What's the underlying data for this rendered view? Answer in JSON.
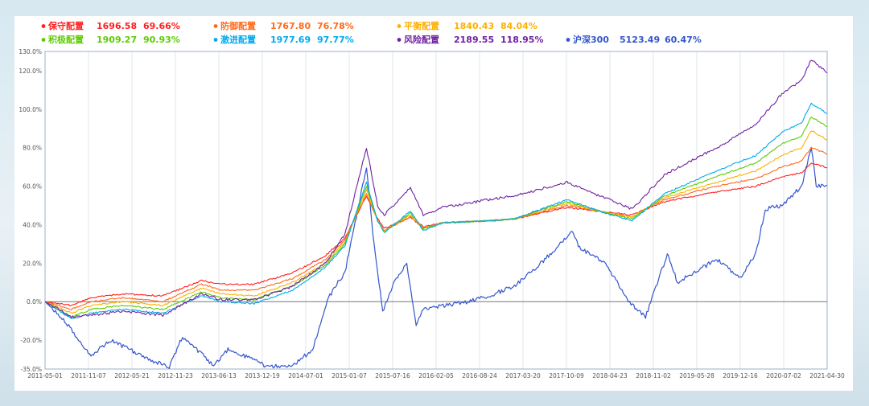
{
  "chart_data": {
    "type": "line",
    "x_start": "2011-05-01",
    "x_end": "2021-04-30",
    "x_tick_labels": [
      "2011-05-01",
      "2011-11-07",
      "2012-05-21",
      "2012-11-23",
      "2013-06-13",
      "2013-12-19",
      "2014-07-01",
      "2015-01-07",
      "2015-07-16",
      "2016-02-05",
      "2016-08-24",
      "2017-03-20",
      "2017-10-09",
      "2018-04-23",
      "2018-11-02",
      "2019-05-28",
      "2019-12-16",
      "2020-07-02",
      "2021-04-30"
    ],
    "y_tick_labels": [
      "130.0%",
      "120.0%",
      "100.0%",
      "80.0%",
      "60.0%",
      "40.0%",
      "20.0%",
      "0.0%",
      "-20.0%",
      "-35.0%"
    ],
    "ylim": [
      -35,
      130
    ],
    "y_ticks": [
      130,
      120,
      100,
      80,
      60,
      40,
      20,
      0,
      -20,
      -35
    ],
    "grid": "vertical",
    "legend_position": "top",
    "series": [
      {
        "name": "保守配置",
        "value": "1696.58",
        "pct": "69.66%",
        "color": "#ff2020",
        "points": [
          [
            "2011-05-01",
            0
          ],
          [
            "2011-09-01",
            -2
          ],
          [
            "2011-12-01",
            2
          ],
          [
            "2012-05-01",
            4
          ],
          [
            "2012-11-01",
            3
          ],
          [
            "2013-05-01",
            11
          ],
          [
            "2013-08-01",
            9
          ],
          [
            "2014-01-01",
            9
          ],
          [
            "2014-07-01",
            15
          ],
          [
            "2014-12-01",
            24
          ],
          [
            "2015-03-01",
            33
          ],
          [
            "2015-06-10",
            55
          ],
          [
            "2015-08-01",
            43
          ],
          [
            "2015-09-01",
            38
          ],
          [
            "2016-01-01",
            44
          ],
          [
            "2016-03-01",
            39
          ],
          [
            "2016-06-01",
            41
          ],
          [
            "2017-01-01",
            42
          ],
          [
            "2017-05-01",
            43
          ],
          [
            "2018-01-01",
            49
          ],
          [
            "2018-06-01",
            47
          ],
          [
            "2018-11-01",
            45
          ],
          [
            "2019-04-01",
            52
          ],
          [
            "2019-12-01",
            57
          ],
          [
            "2020-06-01",
            60
          ],
          [
            "2020-10-01",
            65
          ],
          [
            "2021-01-01",
            67
          ],
          [
            "2021-02-15",
            72
          ],
          [
            "2021-04-30",
            69.66
          ]
        ]
      },
      {
        "name": "防御配置",
        "value": "1767.80",
        "pct": "76.78%",
        "color": "#ff6a1a",
        "points": [
          [
            "2011-05-01",
            0
          ],
          [
            "2011-09-01",
            -4
          ],
          [
            "2011-12-01",
            0
          ],
          [
            "2012-05-01",
            2
          ],
          [
            "2012-11-01",
            0
          ],
          [
            "2013-05-01",
            9
          ],
          [
            "2013-08-01",
            6
          ],
          [
            "2014-01-01",
            6
          ],
          [
            "2014-07-01",
            12
          ],
          [
            "2014-12-01",
            22
          ],
          [
            "2015-03-01",
            32
          ],
          [
            "2015-06-10",
            56
          ],
          [
            "2015-08-01",
            42
          ],
          [
            "2015-09-01",
            37
          ],
          [
            "2016-01-01",
            44
          ],
          [
            "2016-03-01",
            38
          ],
          [
            "2016-06-01",
            41
          ],
          [
            "2017-01-01",
            42
          ],
          [
            "2017-05-01",
            43
          ],
          [
            "2018-01-01",
            50
          ],
          [
            "2018-06-01",
            47
          ],
          [
            "2018-11-01",
            44
          ],
          [
            "2019-04-01",
            53
          ],
          [
            "2019-12-01",
            60
          ],
          [
            "2020-06-01",
            64
          ],
          [
            "2020-10-01",
            70
          ],
          [
            "2021-01-01",
            73
          ],
          [
            "2021-02-15",
            80
          ],
          [
            "2021-04-30",
            76.78
          ]
        ]
      },
      {
        "name": "平衡配置",
        "value": "1840.43",
        "pct": "84.04%",
        "color": "#ffb000",
        "points": [
          [
            "2011-05-01",
            0
          ],
          [
            "2011-09-01",
            -6
          ],
          [
            "2011-12-01",
            -2
          ],
          [
            "2012-05-01",
            0
          ],
          [
            "2012-11-01",
            -2
          ],
          [
            "2013-05-01",
            7
          ],
          [
            "2013-08-01",
            4
          ],
          [
            "2014-01-01",
            3
          ],
          [
            "2014-07-01",
            10
          ],
          [
            "2014-12-01",
            20
          ],
          [
            "2015-03-01",
            31
          ],
          [
            "2015-06-10",
            58
          ],
          [
            "2015-08-01",
            42
          ],
          [
            "2015-09-01",
            37
          ],
          [
            "2016-01-01",
            45
          ],
          [
            "2016-03-01",
            38
          ],
          [
            "2016-06-01",
            41
          ],
          [
            "2017-01-01",
            42
          ],
          [
            "2017-05-01",
            43
          ],
          [
            "2018-01-01",
            51
          ],
          [
            "2018-06-01",
            47
          ],
          [
            "2018-11-01",
            44
          ],
          [
            "2019-04-01",
            54
          ],
          [
            "2019-12-01",
            62
          ],
          [
            "2020-06-01",
            68
          ],
          [
            "2020-10-01",
            76
          ],
          [
            "2021-01-01",
            80
          ],
          [
            "2021-02-15",
            89
          ],
          [
            "2021-04-30",
            84.04
          ]
        ]
      },
      {
        "name": "积极配置",
        "value": "1909.27",
        "pct": "90.93%",
        "color": "#5ccc00",
        "points": [
          [
            "2011-05-01",
            0
          ],
          [
            "2011-09-01",
            -8
          ],
          [
            "2011-12-01",
            -4
          ],
          [
            "2012-05-01",
            -2
          ],
          [
            "2012-11-01",
            -4
          ],
          [
            "2013-05-01",
            5
          ],
          [
            "2013-08-01",
            2
          ],
          [
            "2014-01-01",
            1
          ],
          [
            "2014-07-01",
            8
          ],
          [
            "2014-12-01",
            19
          ],
          [
            "2015-03-01",
            30
          ],
          [
            "2015-06-10",
            60
          ],
          [
            "2015-08-01",
            42
          ],
          [
            "2015-09-01",
            36
          ],
          [
            "2016-01-01",
            46
          ],
          [
            "2016-03-01",
            38
          ],
          [
            "2016-06-01",
            41
          ],
          [
            "2017-01-01",
            42
          ],
          [
            "2017-05-01",
            43
          ],
          [
            "2018-01-01",
            52
          ],
          [
            "2018-06-01",
            47
          ],
          [
            "2018-11-01",
            43
          ],
          [
            "2019-04-01",
            55
          ],
          [
            "2019-12-01",
            65
          ],
          [
            "2020-06-01",
            72
          ],
          [
            "2020-10-01",
            82
          ],
          [
            "2021-01-01",
            86
          ],
          [
            "2021-02-15",
            96
          ],
          [
            "2021-04-30",
            90.93
          ]
        ]
      },
      {
        "name": "激进配置",
        "value": "1977.69",
        "pct": "97.77%",
        "color": "#00aaee",
        "points": [
          [
            "2011-05-01",
            0
          ],
          [
            "2011-09-01",
            -9
          ],
          [
            "2011-12-01",
            -6
          ],
          [
            "2012-05-01",
            -4
          ],
          [
            "2012-11-01",
            -6
          ],
          [
            "2013-05-01",
            3
          ],
          [
            "2013-08-01",
            0
          ],
          [
            "2014-01-01",
            -1
          ],
          [
            "2014-07-01",
            6
          ],
          [
            "2014-12-01",
            18
          ],
          [
            "2015-03-01",
            29
          ],
          [
            "2015-06-10",
            62
          ],
          [
            "2015-08-01",
            42
          ],
          [
            "2015-09-01",
            36
          ],
          [
            "2016-01-01",
            47
          ],
          [
            "2016-03-01",
            37
          ],
          [
            "2016-06-01",
            41
          ],
          [
            "2017-01-01",
            42
          ],
          [
            "2017-05-01",
            43
          ],
          [
            "2018-01-01",
            53
          ],
          [
            "2018-06-01",
            47
          ],
          [
            "2018-11-01",
            42
          ],
          [
            "2019-04-01",
            56
          ],
          [
            "2019-12-01",
            68
          ],
          [
            "2020-06-01",
            76
          ],
          [
            "2020-10-01",
            88
          ],
          [
            "2021-01-01",
            93
          ],
          [
            "2021-02-15",
            103
          ],
          [
            "2021-04-30",
            97.77
          ]
        ]
      },
      {
        "name": "风险配置",
        "value": "2189.55",
        "pct": "118.95%",
        "color": "#7020a0",
        "points": [
          [
            "2011-05-01",
            0
          ],
          [
            "2011-09-01",
            -8
          ],
          [
            "2011-12-01",
            -7
          ],
          [
            "2012-05-01",
            -5
          ],
          [
            "2012-11-01",
            -7
          ],
          [
            "2013-05-01",
            4
          ],
          [
            "2013-08-01",
            1
          ],
          [
            "2014-01-01",
            1
          ],
          [
            "2014-07-01",
            8
          ],
          [
            "2014-12-01",
            20
          ],
          [
            "2015-03-01",
            35
          ],
          [
            "2015-06-10",
            80
          ],
          [
            "2015-08-01",
            50
          ],
          [
            "2015-09-01",
            45
          ],
          [
            "2016-01-01",
            59
          ],
          [
            "2016-03-01",
            45
          ],
          [
            "2016-06-01",
            49
          ],
          [
            "2017-01-01",
            53
          ],
          [
            "2017-05-01",
            55
          ],
          [
            "2018-01-01",
            62
          ],
          [
            "2018-06-01",
            55
          ],
          [
            "2018-11-01",
            48
          ],
          [
            "2019-04-01",
            66
          ],
          [
            "2019-12-01",
            80
          ],
          [
            "2020-06-01",
            92
          ],
          [
            "2020-10-01",
            108
          ],
          [
            "2021-01-01",
            115
          ],
          [
            "2021-02-15",
            126
          ],
          [
            "2021-04-30",
            118.95
          ]
        ]
      },
      {
        "name": "沪深300",
        "value": "5123.49",
        "pct": "60.47%",
        "color": "#3355cc",
        "points": [
          [
            "2011-05-01",
            0
          ],
          [
            "2011-08-01",
            -10
          ],
          [
            "2011-12-01",
            -28
          ],
          [
            "2012-03-01",
            -20
          ],
          [
            "2012-09-01",
            -30
          ],
          [
            "2012-12-01",
            -34
          ],
          [
            "2013-02-01",
            -18
          ],
          [
            "2013-06-25",
            -33
          ],
          [
            "2013-09-01",
            -25
          ],
          [
            "2014-01-01",
            -30
          ],
          [
            "2014-03-01",
            -34
          ],
          [
            "2014-07-01",
            -33
          ],
          [
            "2014-10-01",
            -25
          ],
          [
            "2014-12-15",
            2
          ],
          [
            "2015-01-15",
            8
          ],
          [
            "2015-03-01",
            15
          ],
          [
            "2015-06-10",
            70
          ],
          [
            "2015-07-10",
            35
          ],
          [
            "2015-08-25",
            -5
          ],
          [
            "2015-10-15",
            10
          ],
          [
            "2015-12-15",
            20
          ],
          [
            "2016-01-28",
            -12
          ],
          [
            "2016-03-01",
            -4
          ],
          [
            "2016-06-01",
            -2
          ],
          [
            "2016-10-01",
            0
          ],
          [
            "2017-01-01",
            3
          ],
          [
            "2017-05-01",
            8
          ],
          [
            "2017-09-01",
            20
          ],
          [
            "2018-01-25",
            36
          ],
          [
            "2018-03-01",
            28
          ],
          [
            "2018-07-01",
            20
          ],
          [
            "2018-10-15",
            0
          ],
          [
            "2019-01-03",
            -8
          ],
          [
            "2019-04-15",
            25
          ],
          [
            "2019-06-01",
            10
          ],
          [
            "2019-12-01",
            22
          ],
          [
            "2020-03-20",
            12
          ],
          [
            "2020-06-01",
            25
          ],
          [
            "2020-07-15",
            48
          ],
          [
            "2020-10-01",
            50
          ],
          [
            "2021-01-01",
            60
          ],
          [
            "2021-02-15",
            80
          ],
          [
            "2021-03-10",
            60
          ],
          [
            "2021-04-30",
            60.47
          ]
        ]
      }
    ]
  }
}
